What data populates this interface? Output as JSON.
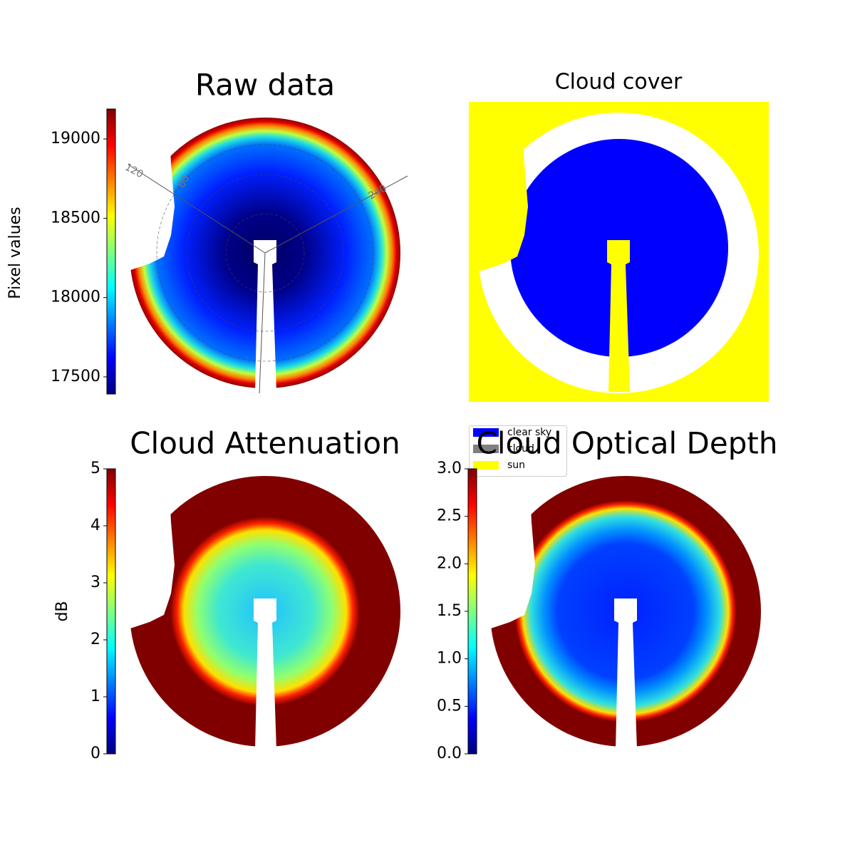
{
  "chart_data": [
    {
      "type": "image",
      "title": "Raw data",
      "ylabel": "Pixel values",
      "colormap": "jet",
      "ylim": [
        17392,
        19189
      ],
      "yticks": [
        17500,
        18000,
        18500,
        19000
      ],
      "polar_labels": [
        "120",
        "60",
        "240"
      ]
    },
    {
      "type": "categorical",
      "title": "Cloud cover",
      "series": [
        {
          "name": "clear sky",
          "color": "#0000ff"
        },
        {
          "name": "cloud",
          "color": "#808080"
        },
        {
          "name": "sun",
          "color": "#ffff00"
        }
      ]
    },
    {
      "type": "image",
      "title": "Cloud Attenuation",
      "ylabel": "dB",
      "colormap": "jet",
      "ylim": [
        0,
        5
      ],
      "yticks": [
        0,
        1,
        2,
        3,
        4,
        5
      ]
    },
    {
      "type": "image",
      "title": "Cloud Optical Depth",
      "colormap": "jet",
      "ylim": [
        0,
        3
      ],
      "yticks": [
        {
          "value": 0,
          "label": "0.0"
        },
        0.5,
        {
          "value": 1,
          "label": "1.0"
        },
        1.5,
        {
          "value": 2,
          "label": "2.0"
        },
        2.5,
        {
          "value": 3,
          "label": "3.0"
        }
      ]
    }
  ]
}
